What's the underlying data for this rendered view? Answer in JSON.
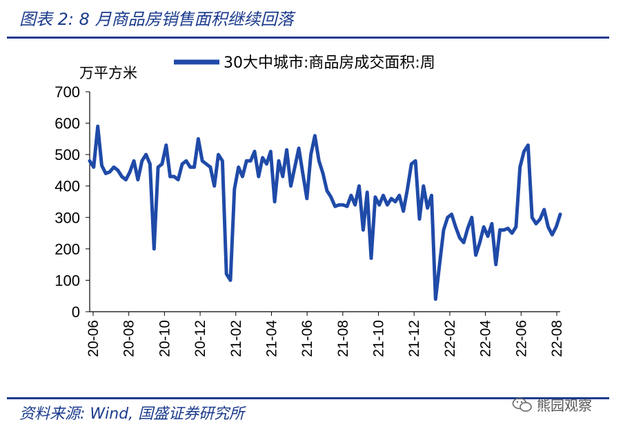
{
  "figure": {
    "title": "图表 2:  8 月商品房销售面积继续回落",
    "source": "资料来源:  Wind,  国盛证券研究所",
    "watermark": "熊园观察",
    "watermark_icon": "wechat-icon"
  },
  "colors": {
    "accent": "#1a3a8c",
    "series": "#1f4aa8"
  },
  "chart_data": {
    "type": "line",
    "title": "",
    "ylabel": "万平方米",
    "xlabel": "",
    "ylim": [
      0,
      700
    ],
    "yticks": [
      "0",
      "100",
      "200",
      "300",
      "400",
      "500",
      "600",
      "700"
    ],
    "xticks": [
      "20-06",
      "20-08",
      "20-10",
      "20-12",
      "21-02",
      "21-04",
      "21-06",
      "21-08",
      "21-10",
      "21-12",
      "22-02",
      "22-04",
      "22-06",
      "22-08"
    ],
    "grid": false,
    "legend_position": "top",
    "x_index_range": [
      0,
      117
    ],
    "series": [
      {
        "name": "30大中城市:商品房成交面积:周",
        "values": [
          480,
          460,
          590,
          465,
          440,
          445,
          460,
          450,
          430,
          420,
          445,
          480,
          420,
          480,
          500,
          470,
          200,
          460,
          470,
          530,
          430,
          430,
          420,
          470,
          480,
          460,
          460,
          550,
          480,
          470,
          460,
          400,
          500,
          480,
          120,
          100,
          390,
          460,
          430,
          480,
          480,
          510,
          430,
          490,
          470,
          510,
          350,
          480,
          430,
          515,
          400,
          460,
          520,
          440,
          360,
          500,
          560,
          480,
          440,
          385,
          365,
          335,
          340,
          340,
          335,
          370,
          340,
          400,
          260,
          380,
          170,
          365,
          340,
          370,
          340,
          360,
          350,
          370,
          320,
          390,
          470,
          480,
          295,
          400,
          330,
          370,
          40,
          150,
          260,
          300,
          310,
          270,
          235,
          220,
          265,
          300,
          180,
          220,
          270,
          240,
          280,
          150,
          260,
          260,
          265,
          250,
          270,
          460,
          510,
          530,
          300,
          280,
          295,
          325,
          270,
          245,
          270,
          310
        ]
      }
    ]
  }
}
